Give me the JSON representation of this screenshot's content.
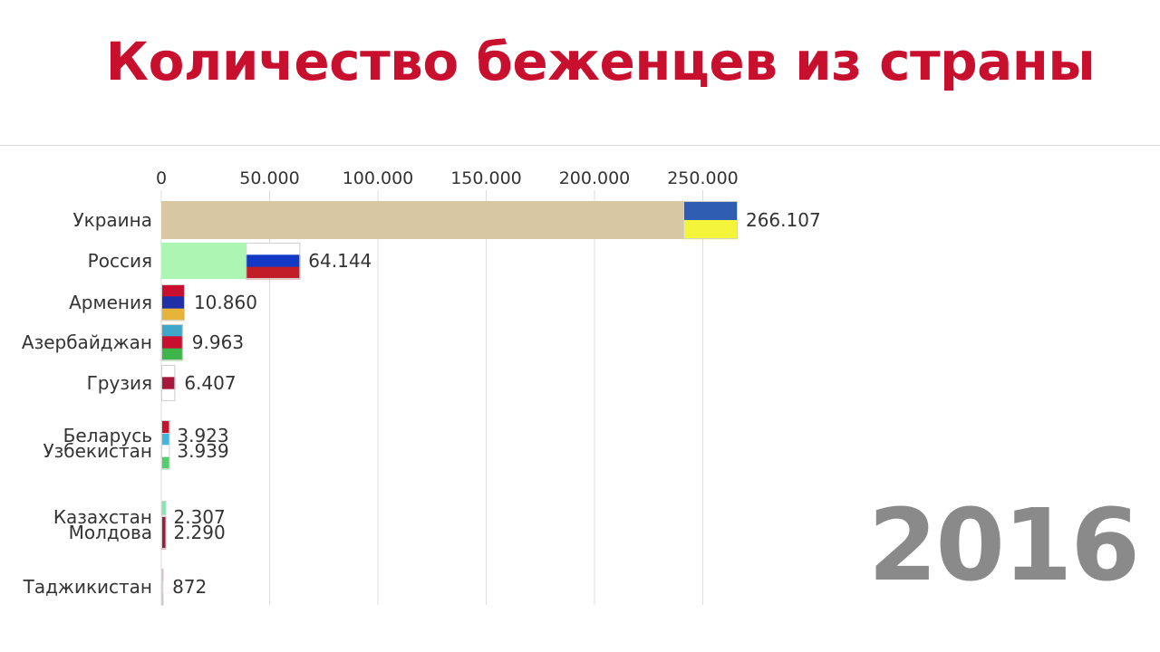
{
  "title": "Количество беженцев из страны",
  "year": "2016",
  "chart_data": {
    "type": "bar",
    "orientation": "horizontal",
    "title": "Количество беженцев из страны",
    "xlim": [
      0,
      266107
    ],
    "xticks": [
      0,
      50000,
      100000,
      150000,
      200000,
      250000
    ],
    "xtick_labels": [
      "0",
      "50.000",
      "100.000",
      "150.000",
      "200.000",
      "250.000"
    ],
    "grid": true,
    "bars": [
      {
        "category": "Украина",
        "value": 266107,
        "label": "266.107",
        "color": "#d7c7a3",
        "flag": [
          "#2e5db1",
          "#f4f43b"
        ]
      },
      {
        "category": "Россия",
        "value": 64144,
        "label": "64.144",
        "color": "#adf5b3",
        "flag": [
          "#ffffff",
          "#1139c4",
          "#c21c27"
        ]
      },
      {
        "category": "Армения",
        "value": 10860,
        "label": "10.860",
        "color": "#b5162a",
        "flag": [
          "#c8102e",
          "#1f2fa8",
          "#e7b43a"
        ]
      },
      {
        "category": "Азербайджан",
        "value": 9963,
        "label": "9.963",
        "color": "#3fa8b8",
        "flag": [
          "#3fa8c8",
          "#c8102e",
          "#3cb54a"
        ]
      },
      {
        "category": "Грузия",
        "value": 6407,
        "label": "6.407",
        "color": "#a8183a",
        "flag": [
          "#ffffff",
          "#a8183a",
          "#ffffff"
        ]
      },
      {
        "category": "Беларусь",
        "value": 3923,
        "label": "3.923",
        "color": "#b5162a",
        "flag": [
          "#c8102e",
          "#c8102e",
          "#3ba84a"
        ]
      },
      {
        "category": "Узбекистан",
        "value": 3939,
        "label": "3.939",
        "color": "#4fd06a",
        "flag": [
          "#3fb6e0",
          "#ffffff",
          "#4fd06a"
        ]
      },
      {
        "category": "Казахстан",
        "value": 2307,
        "label": "2.307",
        "color": "#6ff0b0",
        "flag": [
          "#6ff0b0"
        ]
      },
      {
        "category": "Молдова",
        "value": 2290,
        "label": "2.290",
        "color": "#a8183a",
        "flag": [
          "#a8183a"
        ]
      },
      {
        "category": "Таджикистан",
        "value": 872,
        "label": "872",
        "color": "#c8209a",
        "flag": [
          "#c8209a",
          "#ffffff",
          "#3ba84a"
        ]
      }
    ]
  }
}
